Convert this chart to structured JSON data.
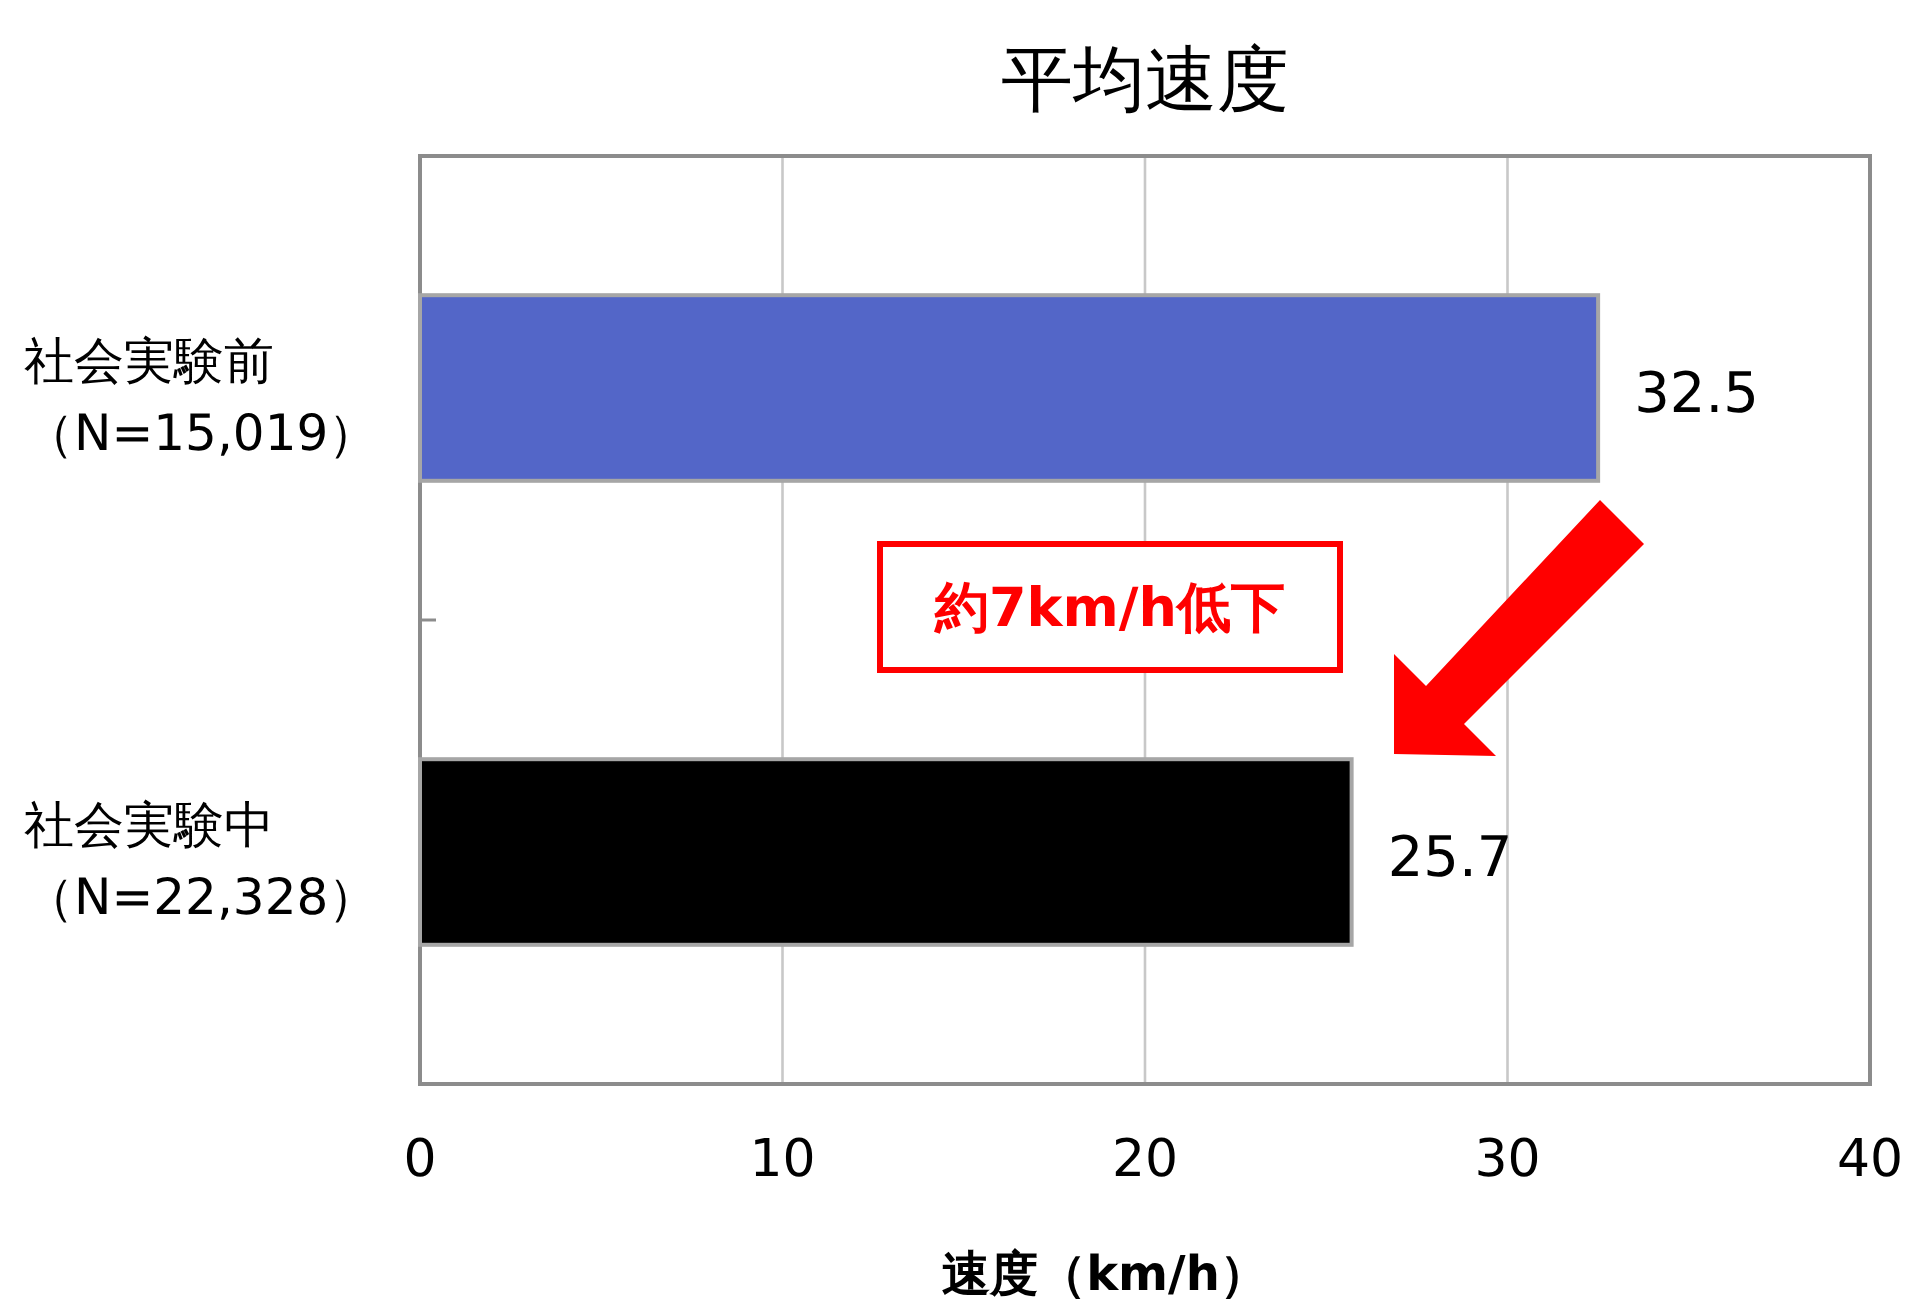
{
  "chart_data": {
    "type": "bar",
    "orientation": "horizontal",
    "title": "平均速度",
    "xlabel": "速度（km/h）",
    "categories": [
      "社会実験前（N=15,019）",
      "社会実験中（N=22,328）"
    ],
    "values": [
      32.5,
      25.7
    ],
    "colors": [
      "#5366c8",
      "#000000"
    ],
    "xlim": [
      0,
      40
    ],
    "xticks": [
      0,
      10,
      20,
      30,
      40
    ],
    "grid": "x",
    "data_labels": true,
    "annotations": [
      "約7km/h低下"
    ]
  }
}
